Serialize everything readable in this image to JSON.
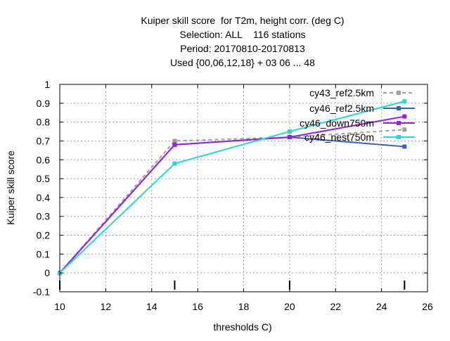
{
  "chart_data": {
    "type": "line",
    "title_lines": [
      "Kuiper skill score  for T2m, height corr. (deg C)",
      "Selection: ALL    116 stations",
      "Period: 20170810-20170813",
      "Used {00,06,12,18} + 03 06 ... 48"
    ],
    "xlabel": "thresholds C)",
    "ylabel": "Kuiper skill score",
    "xlim": [
      10,
      26
    ],
    "ylim": [
      -0.1,
      1.0
    ],
    "x_ticks": [
      10,
      12,
      14,
      16,
      18,
      20,
      22,
      24,
      26
    ],
    "x_tick_labels": [
      "10",
      "12",
      "14",
      "16",
      "18",
      "20",
      "22",
      "24",
      "26"
    ],
    "y_ticks": [
      -0.1,
      0,
      0.1,
      0.2,
      0.3,
      0.4,
      0.5,
      0.6,
      0.7,
      0.8,
      0.9,
      1.0
    ],
    "y_tick_labels": [
      "-0.1",
      "0",
      "0.1",
      "0.2",
      "0.3",
      "0.4",
      "0.5",
      "0.6",
      "0.7",
      "0.8",
      "0.9",
      "1"
    ],
    "grid": true,
    "legend_position": "top-right",
    "bottom_markers_x": [
      10,
      15,
      20,
      25
    ],
    "series": [
      {
        "name": "cy43_ref2.5km",
        "color": "#a0a0a0",
        "dashed": true,
        "x": [
          10,
          15,
          20,
          25
        ],
        "y": [
          0.0,
          0.7,
          0.72,
          0.76
        ]
      },
      {
        "name": "cy46_ref2.5km",
        "color": "#3a5fcd",
        "dashed": false,
        "x": [
          10,
          15,
          20,
          25
        ],
        "y": [
          0.0,
          0.68,
          0.72,
          0.67
        ]
      },
      {
        "name": "cy46_down750m",
        "color": "#9a1ee6",
        "dashed": false,
        "x": [
          10,
          15,
          20,
          25
        ],
        "y": [
          0.0,
          0.68,
          0.72,
          0.83
        ]
      },
      {
        "name": "cy46_nest750m",
        "color": "#22d8d8",
        "dashed": false,
        "x": [
          10,
          15,
          20,
          25
        ],
        "y": [
          0.0,
          0.58,
          0.75,
          0.91
        ]
      }
    ]
  }
}
